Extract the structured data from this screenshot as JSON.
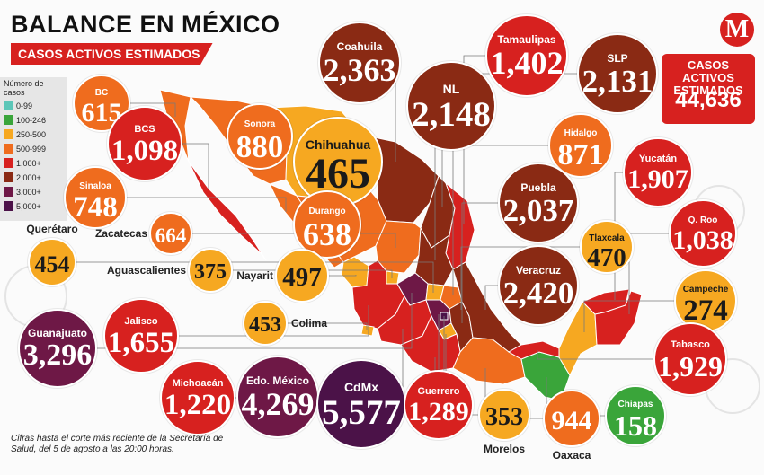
{
  "header": {
    "title": "BALANCE EN MÉXICO",
    "subtitle": "CASOS ACTIVOS ESTIMADOS"
  },
  "brand": {
    "logo_letter": "M",
    "color": "#d7211f"
  },
  "total": {
    "label_line1": "CASOS ACTIVOS",
    "label_line2": "ESTIMADOS",
    "value": "44,636"
  },
  "legend": {
    "title": "Número de casos",
    "items": [
      {
        "label": "0-99",
        "color": "#5cc6b8"
      },
      {
        "label": "100-246",
        "color": "#3aa53a"
      },
      {
        "label": "250-500",
        "color": "#f6a821"
      },
      {
        "label": "500-999",
        "color": "#ef6c1e"
      },
      {
        "label": "1,000+",
        "color": "#d7211f"
      },
      {
        "label": "2,000+",
        "color": "#8a2a14"
      },
      {
        "label": "3,000+",
        "color": "#6e1846"
      },
      {
        "label": "5,000+",
        "color": "#4b1248"
      }
    ]
  },
  "states": [
    {
      "name": "BC",
      "value": "615",
      "color": "#ef6c1e"
    },
    {
      "name": "BCS",
      "value": "1,098",
      "color": "#d7211f"
    },
    {
      "name": "Sinaloa",
      "value": "748",
      "color": "#ef6c1e"
    },
    {
      "name": "Sonora",
      "value": "880",
      "color": "#ef6c1e"
    },
    {
      "name": "Chihuahua",
      "value": "465",
      "color": "#f6a821"
    },
    {
      "name": "Coahuila",
      "value": "2,363",
      "color": "#8a2a14"
    },
    {
      "name": "Tamaulipas",
      "value": "1,402",
      "color": "#d7211f"
    },
    {
      "name": "SLP",
      "value": "2,131",
      "color": "#8a2a14"
    },
    {
      "name": "NL",
      "value": "2,148",
      "color": "#8a2a14"
    },
    {
      "name": "Hidalgo",
      "value": "871",
      "color": "#ef6c1e"
    },
    {
      "name": "Yucatán",
      "value": "1,907",
      "color": "#d7211f"
    },
    {
      "name": "Durango",
      "value": "638",
      "color": "#ef6c1e"
    },
    {
      "name": "Puebla",
      "value": "2,037",
      "color": "#8a2a14"
    },
    {
      "name": "Zacatecas",
      "value": "664",
      "color": "#ef6c1e"
    },
    {
      "name": "Tlaxcala",
      "value": "470",
      "color": "#f6a821"
    },
    {
      "name": "Q. Roo",
      "value": "1,038",
      "color": "#d7211f"
    },
    {
      "name": "Querétaro",
      "value": "454",
      "color": "#f6a821"
    },
    {
      "name": "Aguascalientes",
      "value": "375",
      "color": "#f6a821"
    },
    {
      "name": "Nayarit",
      "value": "497",
      "color": "#f6a821"
    },
    {
      "name": "Veracruz",
      "value": "2,420",
      "color": "#8a2a14"
    },
    {
      "name": "Campeche",
      "value": "274",
      "color": "#f6a821"
    },
    {
      "name": "Guanajuato",
      "value": "3,296",
      "color": "#6e1846"
    },
    {
      "name": "Jalisco",
      "value": "1,655",
      "color": "#d7211f"
    },
    {
      "name": "Colima",
      "value": "453",
      "color": "#f6a821"
    },
    {
      "name": "Tabasco",
      "value": "1,929",
      "color": "#d7211f"
    },
    {
      "name": "Michoacán",
      "value": "1,220",
      "color": "#d7211f"
    },
    {
      "name": "Edo. México",
      "value": "4,269",
      "color": "#6e1846"
    },
    {
      "name": "CdMx",
      "value": "5,577",
      "color": "#4b1248"
    },
    {
      "name": "Guerrero",
      "value": "1,289",
      "color": "#d7211f"
    },
    {
      "name": "Morelos",
      "value": "353",
      "color": "#f6a821"
    },
    {
      "name": "Oaxaca",
      "value": "944",
      "color": "#ef6c1e"
    },
    {
      "name": "Chiapas",
      "value": "158",
      "color": "#3aa53a"
    }
  ],
  "footnote": "Cifras hasta el corte más reciente de la Secretaría de Salud, del 5 de agosto a las 20:00 horas."
}
